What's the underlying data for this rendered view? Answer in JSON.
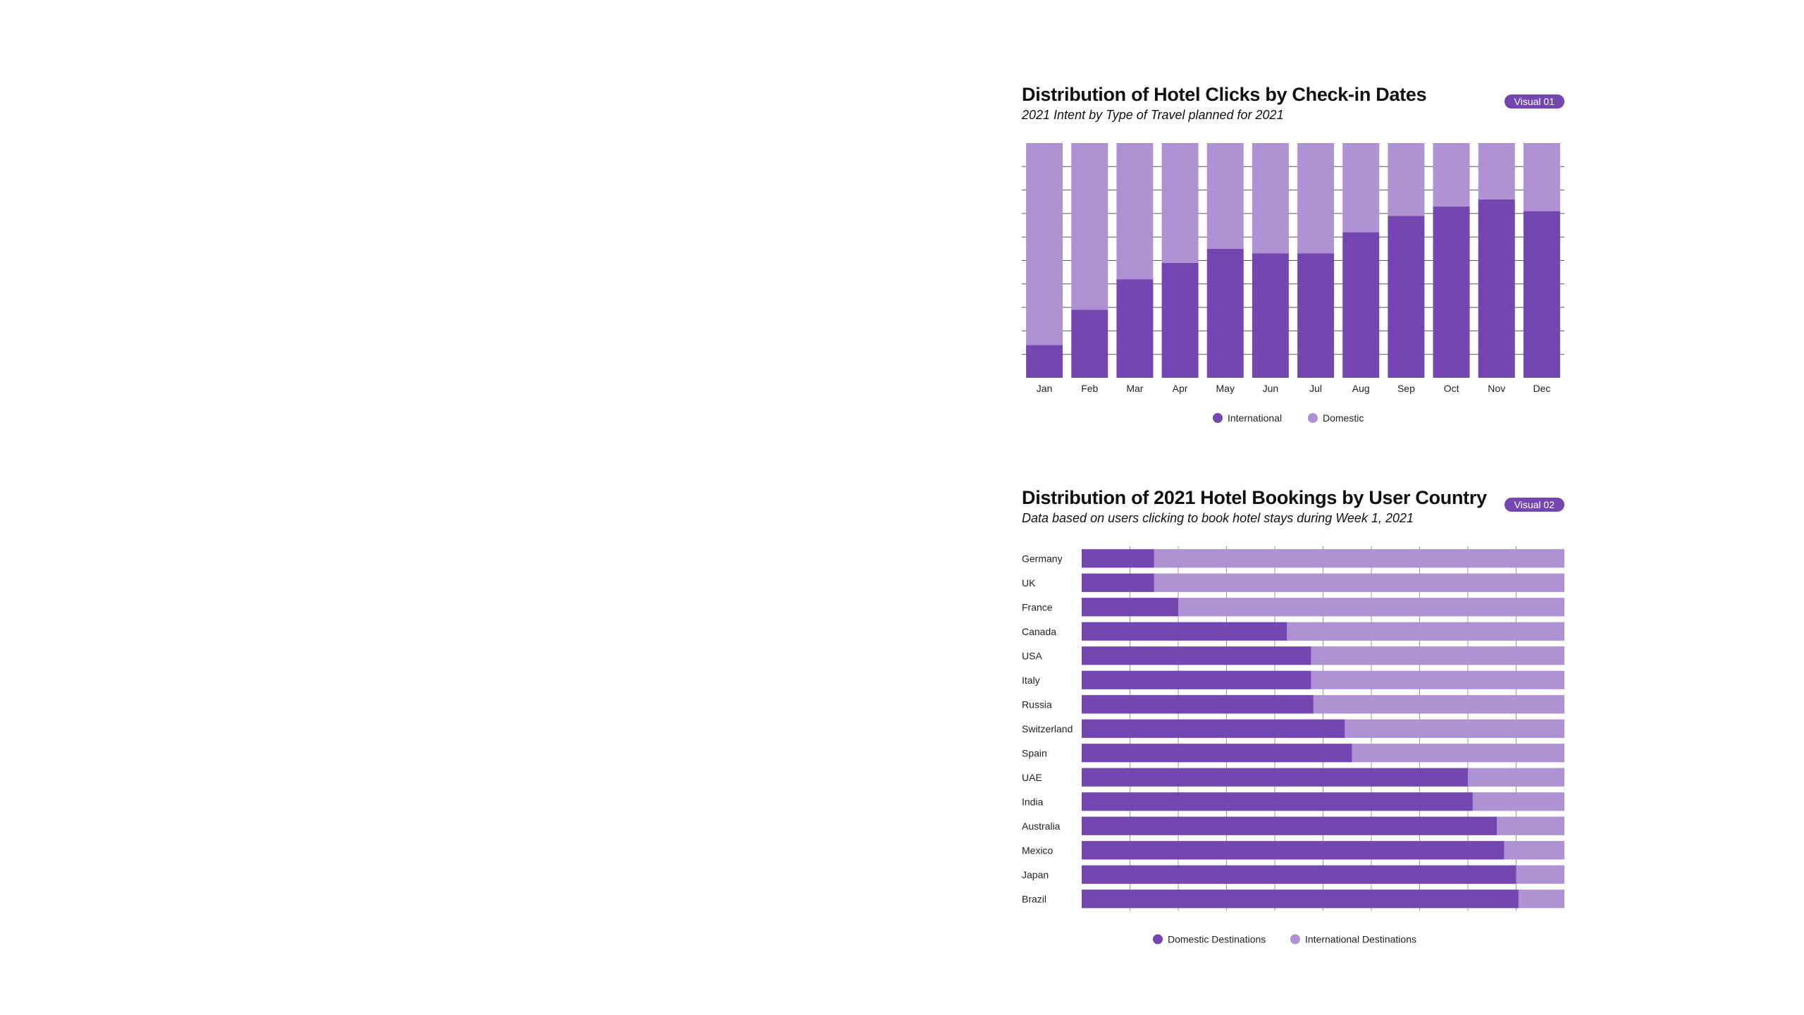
{
  "colors": {
    "dark": "#7446b2",
    "light": "#ae92d4",
    "grid": "#555555"
  },
  "visual1": {
    "badge": "Visual 01",
    "title": "Distribution of Hotel Clicks by Check-in Dates",
    "subtitle": "2021 Intent by Type of Travel planned for 2021"
  },
  "visual2": {
    "badge": "Visual 02",
    "title": "Distribution of 2021 Hotel Bookings by User Country",
    "subtitle": "Data based on users clicking to book hotel stays during Week 1, 2021"
  },
  "chart_data": [
    {
      "type": "bar",
      "orientation": "vertical",
      "stacked": true,
      "normalized": true,
      "title": "Distribution of Hotel Clicks by Check-in Dates",
      "subtitle": "2021 Intent by Type of Travel planned for 2021",
      "categories": [
        "Jan",
        "Feb",
        "Mar",
        "Apr",
        "May",
        "Jun",
        "Jul",
        "Aug",
        "Sep",
        "Oct",
        "Nov",
        "Dec"
      ],
      "series": [
        {
          "name": "International",
          "values": [
            14,
            29,
            42,
            49,
            55,
            53,
            53,
            62,
            69,
            73,
            76,
            71
          ]
        },
        {
          "name": "Domestic",
          "values": [
            86,
            71,
            58,
            51,
            45,
            47,
            47,
            38,
            31,
            27,
            24,
            29
          ]
        }
      ],
      "ylim": [
        0,
        100
      ],
      "grid": true,
      "legend": "bottom"
    },
    {
      "type": "bar",
      "orientation": "horizontal",
      "stacked": true,
      "normalized": true,
      "title": "Distribution of 2021 Hotel Bookings by User Country",
      "subtitle": "Data based on users clicking to book hotel stays during Week 1, 2021",
      "categories": [
        "Germany",
        "UK",
        "France",
        "Canada",
        "USA",
        "Italy",
        "Russia",
        "Switzerland",
        "Spain",
        "UAE",
        "India",
        "Australia",
        "Mexico",
        "Japan",
        "Brazil"
      ],
      "series": [
        {
          "name": "Domestic Destinations",
          "values": [
            15,
            15,
            20,
            42.5,
            47.5,
            47.5,
            48,
            54.5,
            56,
            80,
            81,
            86,
            87.5,
            90,
            90.5
          ]
        },
        {
          "name": "International Destinations",
          "values": [
            85,
            85,
            80,
            57.5,
            52.5,
            52.5,
            52,
            45.5,
            44,
            20,
            19,
            14,
            12.5,
            10,
            9.5
          ]
        }
      ],
      "xlim": [
        0,
        100
      ],
      "grid": true,
      "legend": "bottom"
    }
  ]
}
